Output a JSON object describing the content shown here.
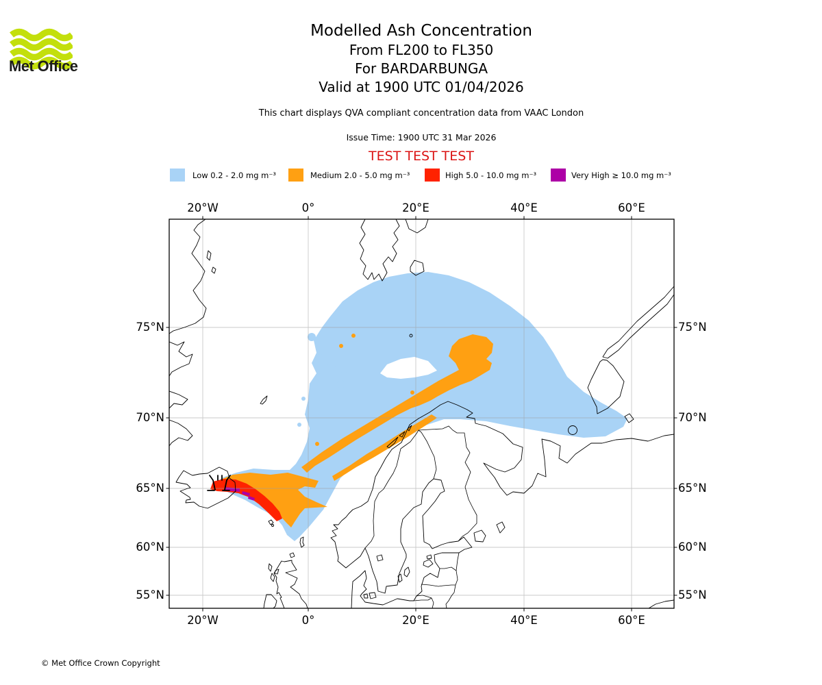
{
  "logo": {
    "brand": "Met Office",
    "wave_color": "#c3df0c"
  },
  "header": {
    "title": "Modelled Ash Concentration",
    "subtitle_levels": "From FL200 to FL350",
    "subtitle_volcano": "For BARDARBUNGA",
    "subtitle_valid": "Valid at 1900 UTC 01/04/2026",
    "note": "This chart displays QVA compliant concentration data from VAAC London",
    "issue_time": "Issue Time: 1900 UTC 31 Mar 2026",
    "watermark": "TEST TEST TEST",
    "watermark_color": "#DB1414"
  },
  "legend": {
    "items": [
      {
        "label": "Low 0.2 - 2.0 mg m⁻³",
        "color": "#A9D3F6"
      },
      {
        "label": "Medium 2.0 - 5.0 mg m⁻³",
        "color": "#FFA012"
      },
      {
        "label": "High 5.0 - 10.0 mg m⁻³",
        "color": "#FF2200"
      },
      {
        "label": "Very High  ≥  10.0 mg m⁻³",
        "color": "#AD00A6"
      }
    ]
  },
  "map": {
    "x_ticks": [
      "20°W",
      "0°",
      "20°E",
      "40°E",
      "60°E"
    ],
    "y_ticks": [
      "75°N",
      "70°N",
      "65°N",
      "60°N",
      "55°N"
    ],
    "volcano_name": "BARDARBUNGA",
    "ash_levels": [
      {
        "name": "Low",
        "range": "0.2 - 2.0 mg m⁻³",
        "color": "#A9D3F6"
      },
      {
        "name": "Medium",
        "range": "2.0 - 5.0 mg m⁻³",
        "color": "#FFA012"
      },
      {
        "name": "High",
        "range": "5.0 - 10.0 mg m⁻³",
        "color": "#FF2200"
      },
      {
        "name": "Very High",
        "range": "≥ 10.0 mg m⁻³",
        "color": "#AD00A6"
      }
    ]
  },
  "footer": {
    "copyright": "© Met Office Crown Copyright"
  }
}
